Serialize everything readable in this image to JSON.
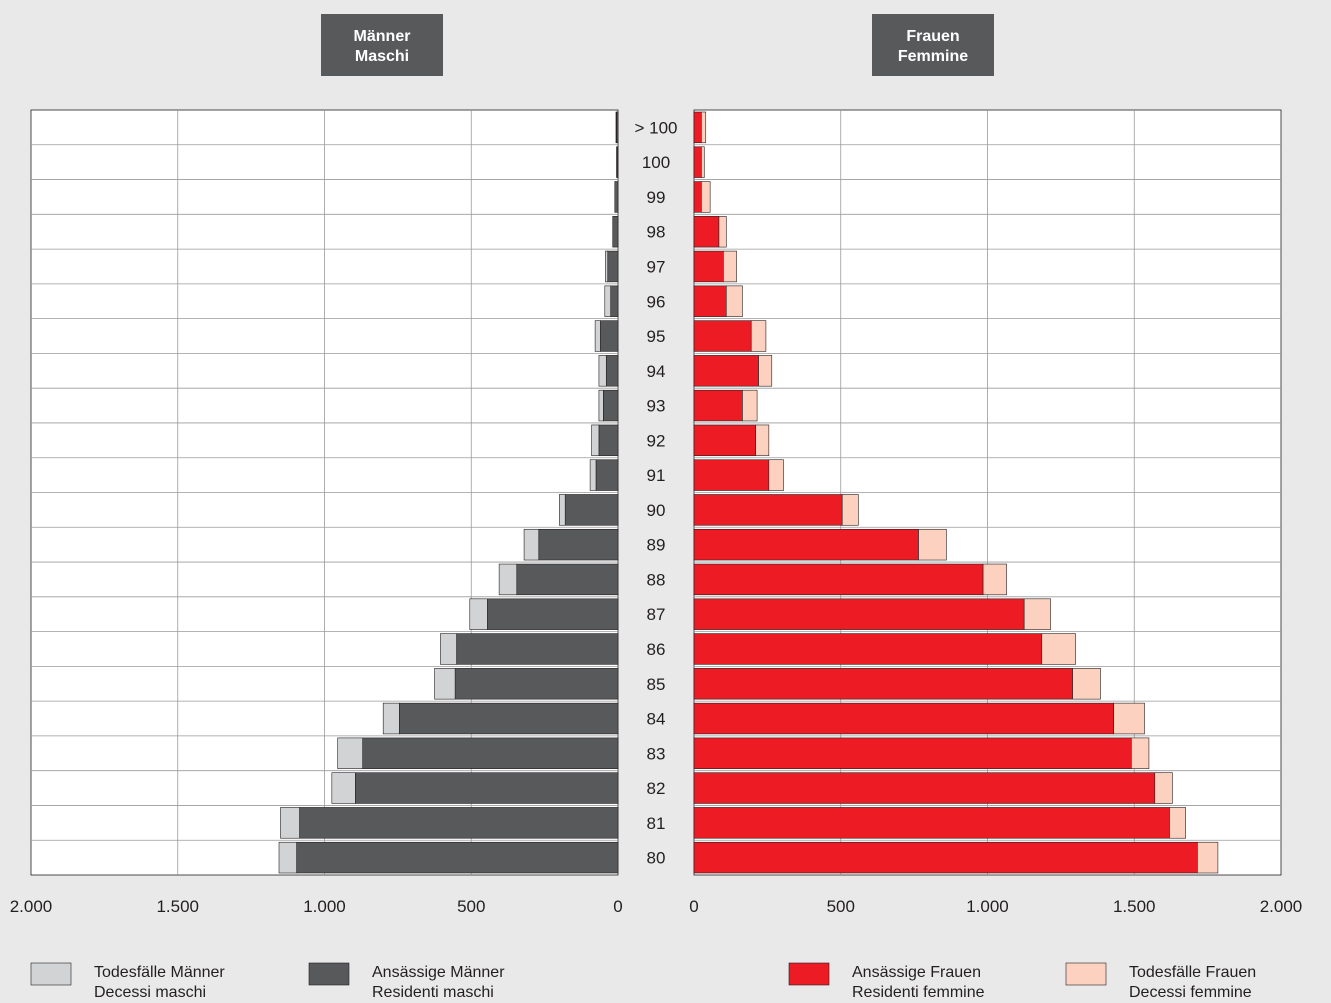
{
  "chart_data": {
    "type": "bar",
    "subtype": "population-pyramid",
    "headers": {
      "left": [
        "Männer",
        "Maschi"
      ],
      "right": [
        "Frauen",
        "Femmine"
      ]
    },
    "categories": [
      "> 100",
      "100",
      "99",
      "98",
      "97",
      "96",
      "95",
      "94",
      "93",
      "92",
      "91",
      "90",
      "89",
      "88",
      "87",
      "86",
      "85",
      "84",
      "83",
      "82",
      "81",
      "80"
    ],
    "xlim": [
      0,
      2000
    ],
    "ticks": [
      0,
      500,
      1000,
      1500,
      2000
    ],
    "tick_labels": [
      "0",
      "500",
      "1.000",
      "1.500",
      "2.000"
    ],
    "grid": true,
    "series": [
      {
        "side": "left",
        "label_de": "Ansässige Männer",
        "label_it": "Residenti maschi",
        "color": "#58595b",
        "values": [
          5,
          3,
          8,
          15,
          35,
          25,
          60,
          40,
          50,
          65,
          75,
          180,
          270,
          345,
          445,
          550,
          555,
          745,
          870,
          895,
          1085,
          1095
        ]
      },
      {
        "side": "left",
        "label_de": "Todesfälle Männer",
        "label_it": "Decessi maschi",
        "color": "#d1d3d4",
        "values": [
          2,
          2,
          3,
          3,
          8,
          20,
          18,
          25,
          15,
          25,
          20,
          20,
          50,
          60,
          60,
          55,
          70,
          55,
          85,
          80,
          65,
          60
        ]
      },
      {
        "side": "right",
        "label_de": "Ansässige Frauen",
        "label_it": "Residenti femmine",
        "color": "#ed1c24",
        "values": [
          25,
          25,
          25,
          85,
          100,
          110,
          195,
          220,
          165,
          210,
          255,
          505,
          765,
          985,
          1125,
          1185,
          1290,
          1430,
          1490,
          1570,
          1620,
          1715
        ]
      },
      {
        "side": "right",
        "label_de": "Todesfälle Frauen",
        "label_it": "Decessi femmine",
        "color": "#fdd1bf",
        "values": [
          15,
          10,
          30,
          25,
          45,
          55,
          50,
          45,
          50,
          45,
          50,
          55,
          95,
          80,
          90,
          115,
          95,
          105,
          60,
          60,
          55,
          70
        ]
      }
    ],
    "legend": {
      "placement": "bottom",
      "order": [
        1,
        0,
        2,
        3
      ]
    }
  }
}
